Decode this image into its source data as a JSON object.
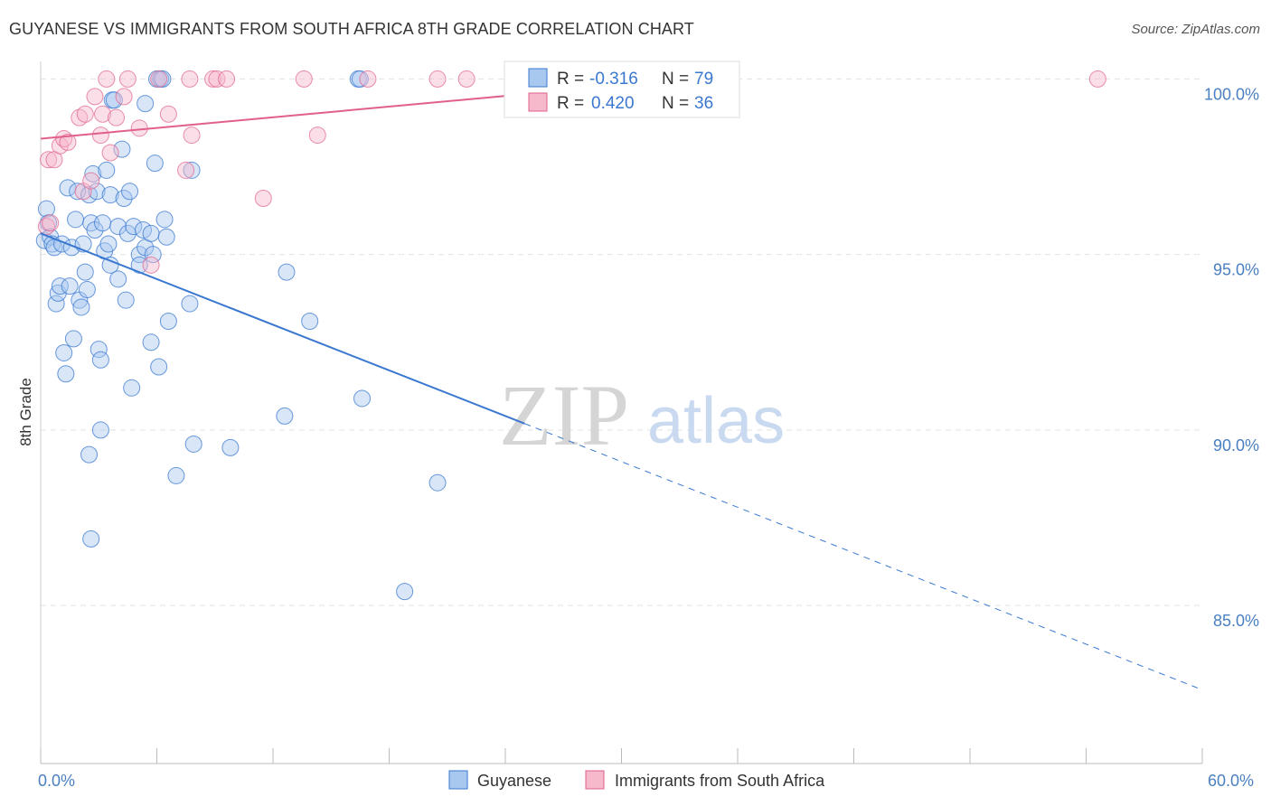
{
  "title": "GUYANESE VS IMMIGRANTS FROM SOUTH AFRICA 8TH GRADE CORRELATION CHART",
  "source": "Source: ZipAtlas.com",
  "colors": {
    "blue": "#3a78d0",
    "blue_fill": "#a9c8ef",
    "pink": "#e0608a",
    "pink_fill": "#f6b8cb",
    "grid": "#e3e3e3",
    "axis_text": "#4a7fc1"
  },
  "watermark": {
    "zip": "ZIP",
    "atlas": "atlas"
  },
  "legend": {
    "rows": [
      {
        "r_label": "R =",
        "r_value": "-0.316",
        "n_label": "N =",
        "n_value": "79"
      },
      {
        "r_label": "R =",
        "r_value": "0.420",
        "n_label": "N =",
        "n_value": "36"
      }
    ]
  },
  "chart_data": {
    "type": "scatter",
    "title": "GUYANESE VS IMMIGRANTS FROM SOUTH AFRICA 8TH GRADE CORRELATION CHART",
    "xlabel": "",
    "ylabel": "8th Grade",
    "xlim": [
      0,
      60
    ],
    "ylim": [
      80.5,
      100.5
    ],
    "x_tick_labels": [
      "0.0%",
      "60.0%"
    ],
    "y_ticks": [
      85,
      90,
      95,
      100
    ],
    "y_tick_labels": [
      "85.0%",
      "90.0%",
      "95.0%",
      "100.0%"
    ],
    "grid": true,
    "legend_position": "top-center",
    "series": [
      {
        "name": "Guyanese",
        "color": "#3a78d0",
        "r": -0.316,
        "n": 79,
        "trend": {
          "x_start": 0,
          "y_start": 95.6,
          "x_solid_end": 25,
          "x_end": 60,
          "y_end": 82.6
        },
        "points": [
          [
            0.2,
            95.4
          ],
          [
            0.3,
            96.3
          ],
          [
            0.4,
            95.9
          ],
          [
            0.5,
            95.5
          ],
          [
            0.6,
            95.3
          ],
          [
            0.7,
            95.2
          ],
          [
            0.8,
            93.6
          ],
          [
            0.9,
            93.9
          ],
          [
            1.0,
            94.1
          ],
          [
            1.1,
            95.3
          ],
          [
            1.2,
            92.2
          ],
          [
            1.3,
            91.6
          ],
          [
            1.4,
            96.9
          ],
          [
            1.5,
            94.1
          ],
          [
            1.6,
            95.2
          ],
          [
            1.7,
            92.6
          ],
          [
            1.8,
            96.0
          ],
          [
            1.9,
            96.8
          ],
          [
            2.0,
            93.7
          ],
          [
            2.1,
            93.5
          ],
          [
            2.2,
            95.3
          ],
          [
            2.3,
            94.5
          ],
          [
            2.4,
            94.0
          ],
          [
            2.5,
            96.7
          ],
          [
            2.6,
            95.9
          ],
          [
            2.7,
            97.3
          ],
          [
            2.5,
            89.3
          ],
          [
            2.6,
            86.9
          ],
          [
            2.8,
            95.7
          ],
          [
            2.9,
            96.8
          ],
          [
            3.0,
            92.3
          ],
          [
            3.1,
            92.0
          ],
          [
            3.1,
            90.0
          ],
          [
            3.2,
            95.9
          ],
          [
            3.3,
            95.1
          ],
          [
            3.4,
            97.4
          ],
          [
            3.5,
            95.3
          ],
          [
            3.6,
            96.7
          ],
          [
            3.6,
            94.7
          ],
          [
            3.7,
            99.4
          ],
          [
            3.8,
            99.4
          ],
          [
            4.0,
            94.3
          ],
          [
            4.0,
            95.8
          ],
          [
            4.2,
            98.0
          ],
          [
            4.3,
            96.6
          ],
          [
            4.4,
            93.7
          ],
          [
            4.5,
            95.6
          ],
          [
            4.6,
            96.8
          ],
          [
            4.7,
            91.2
          ],
          [
            4.8,
            95.8
          ],
          [
            5.1,
            95.0
          ],
          [
            5.1,
            94.7
          ],
          [
            5.3,
            95.7
          ],
          [
            5.4,
            95.2
          ],
          [
            5.4,
            99.3
          ],
          [
            5.7,
            92.5
          ],
          [
            5.7,
            95.6
          ],
          [
            5.8,
            95.0
          ],
          [
            5.9,
            97.6
          ],
          [
            6.0,
            100.0
          ],
          [
            6.1,
            91.8
          ],
          [
            6.2,
            100.0
          ],
          [
            6.3,
            100.0
          ],
          [
            6.4,
            96.0
          ],
          [
            6.5,
            95.5
          ],
          [
            6.6,
            93.1
          ],
          [
            7.0,
            88.7
          ],
          [
            7.7,
            93.6
          ],
          [
            7.8,
            97.4
          ],
          [
            7.9,
            89.6
          ],
          [
            9.8,
            89.5
          ],
          [
            12.6,
            90.4
          ],
          [
            12.7,
            94.5
          ],
          [
            13.9,
            93.1
          ],
          [
            16.4,
            100.0
          ],
          [
            16.5,
            100.0
          ],
          [
            16.6,
            90.9
          ],
          [
            18.8,
            85.4
          ],
          [
            20.5,
            88.5
          ]
        ]
      },
      {
        "name": "Immigrants from South Africa",
        "color": "#e0608a",
        "r": 0.42,
        "n": 36,
        "trend": {
          "x_start": 0,
          "y_start": 98.3,
          "x_end": 33.5,
          "y_end": 100.0
        },
        "points": [
          [
            0.3,
            95.8
          ],
          [
            0.4,
            97.7
          ],
          [
            0.5,
            95.9
          ],
          [
            0.7,
            97.7
          ],
          [
            1.0,
            98.1
          ],
          [
            1.2,
            98.3
          ],
          [
            1.4,
            98.2
          ],
          [
            2.0,
            98.9
          ],
          [
            2.2,
            96.8
          ],
          [
            2.3,
            99.0
          ],
          [
            2.6,
            97.1
          ],
          [
            2.8,
            99.5
          ],
          [
            3.1,
            98.4
          ],
          [
            3.2,
            99.0
          ],
          [
            3.4,
            100.0
          ],
          [
            3.6,
            97.9
          ],
          [
            3.9,
            98.9
          ],
          [
            4.3,
            99.5
          ],
          [
            4.5,
            100.0
          ],
          [
            5.1,
            98.6
          ],
          [
            5.7,
            94.7
          ],
          [
            6.1,
            100.0
          ],
          [
            6.6,
            99.0
          ],
          [
            7.5,
            97.4
          ],
          [
            7.7,
            100.0
          ],
          [
            7.8,
            98.4
          ],
          [
            8.9,
            100.0
          ],
          [
            9.1,
            100.0
          ],
          [
            9.6,
            100.0
          ],
          [
            11.5,
            96.6
          ],
          [
            13.6,
            100.0
          ],
          [
            14.3,
            98.4
          ],
          [
            16.9,
            100.0
          ],
          [
            20.5,
            100.0
          ],
          [
            22.0,
            100.0
          ],
          [
            54.6,
            100.0
          ]
        ]
      }
    ]
  }
}
